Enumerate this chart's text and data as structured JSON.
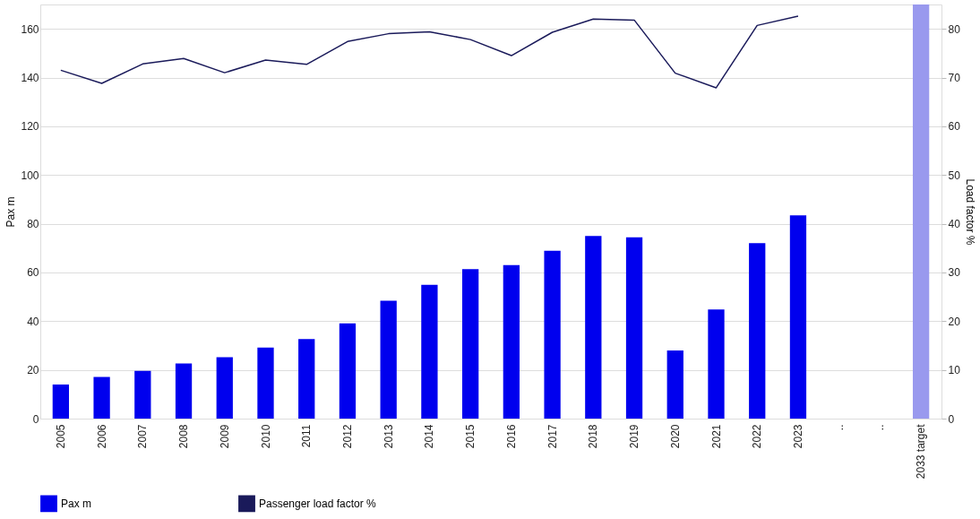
{
  "chart_data": {
    "type": "bar",
    "categories": [
      "2005",
      "2006",
      "2007",
      "2008",
      "2009",
      "2010",
      "2011",
      "2012",
      "2013",
      "2014",
      "2015",
      "2016",
      "2017",
      "2018",
      "2019",
      "2020",
      "2021",
      "2022",
      "2023",
      "..",
      "..",
      "2033 target"
    ],
    "ylabel": "Pax m",
    "y2label": "Load factor %",
    "ylim": [
      0,
      170
    ],
    "yticks": [
      0,
      20,
      40,
      60,
      80,
      100,
      120,
      140,
      160
    ],
    "y2lim": [
      0,
      85
    ],
    "y2ticks": [
      0,
      10,
      20,
      30,
      40,
      50,
      60,
      70,
      80
    ],
    "grid": "y",
    "legend": "bottom",
    "series": [
      {
        "name": "Pax m",
        "color": "#0000ee",
        "values": [
          14.0,
          17.1,
          19.6,
          22.6,
          25.2,
          29.2,
          32.7,
          39.1,
          48.4,
          54.9,
          61.4,
          63.0,
          68.9,
          75.0,
          74.4,
          28.0,
          44.8,
          72.0,
          83.4,
          null,
          null,
          null
        ]
      },
      {
        "color": "#9999ee",
        "values": [
          null,
          null,
          null,
          null,
          null,
          null,
          null,
          null,
          null,
          null,
          null,
          null,
          null,
          null,
          null,
          null,
          null,
          null,
          null,
          null,
          null,
          170
        ]
      },
      {
        "name": "Passenger load factor %",
        "type": "line",
        "axis": "y2",
        "color": "#1a1a5a",
        "values": [
          71.5,
          68.8,
          72.8,
          73.9,
          71.0,
          73.6,
          72.7,
          77.4,
          79.0,
          79.4,
          77.8,
          74.5,
          79.3,
          82.0,
          81.8,
          70.9,
          67.9,
          80.7,
          82.6,
          null,
          null,
          null
        ]
      }
    ]
  }
}
